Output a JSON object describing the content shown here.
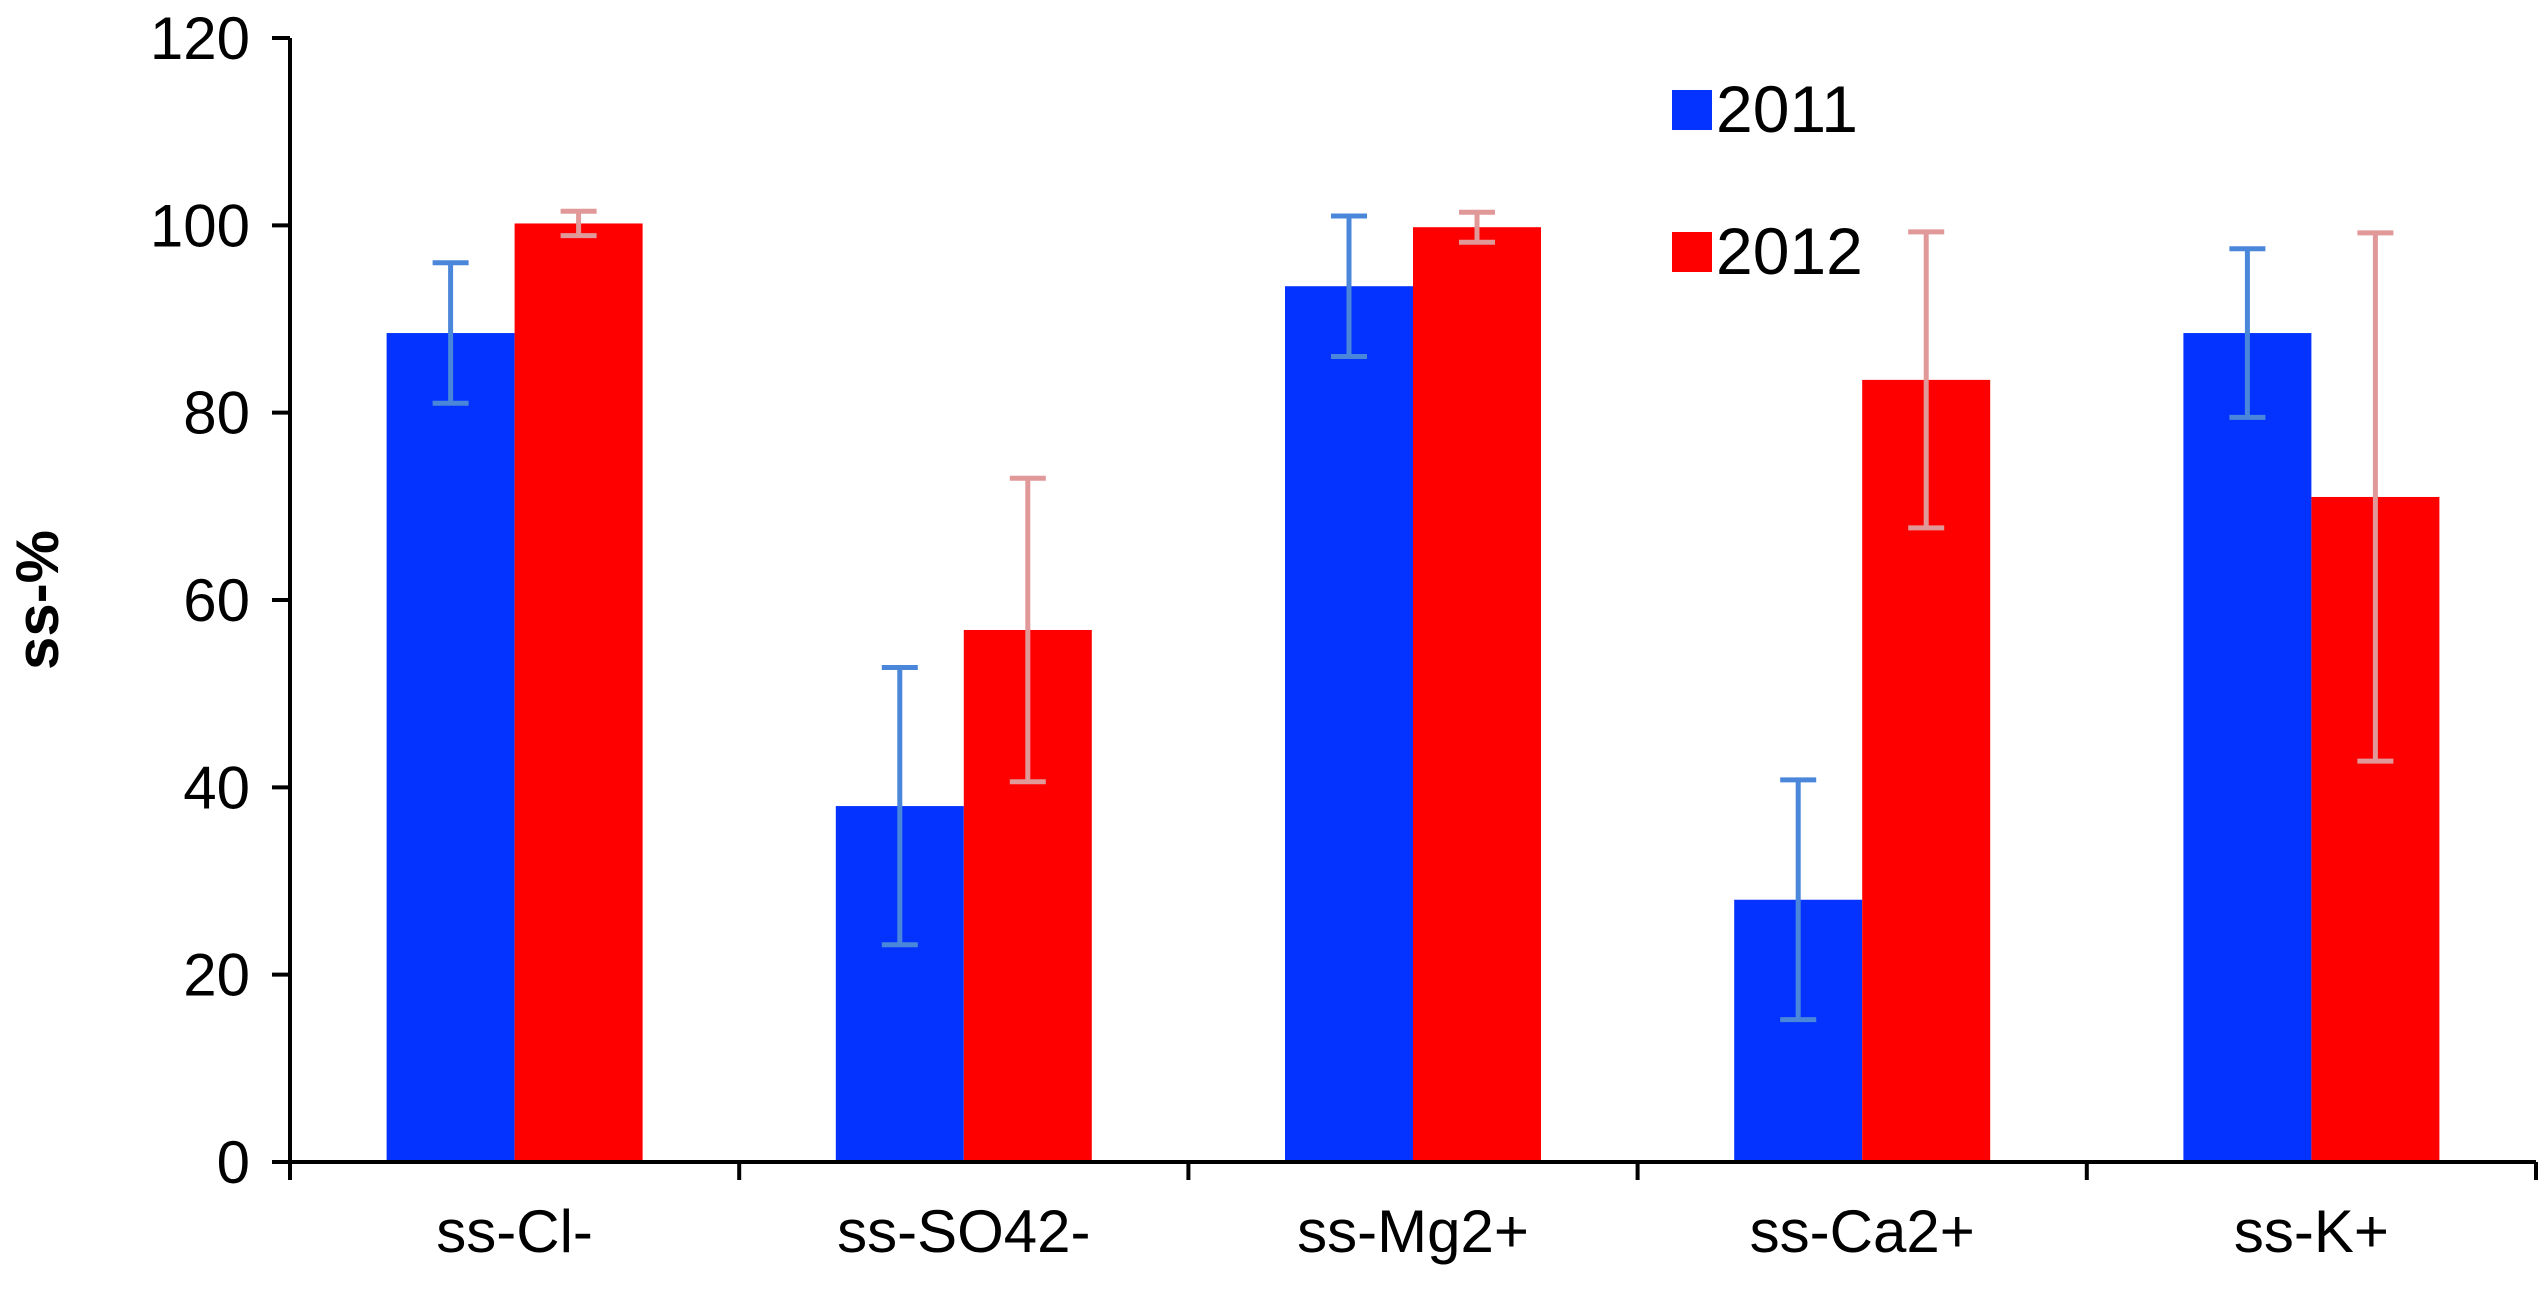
{
  "chart_data": {
    "type": "bar",
    "title": "",
    "xlabel": "",
    "ylabel": "ss-%",
    "ylim": [
      0,
      120
    ],
    "yticks": [
      0,
      20,
      40,
      60,
      80,
      100,
      120
    ],
    "grid": false,
    "legend_position": "top-right",
    "categories": [
      "ss-Cl-",
      "ss-SO42-",
      "ss-Mg2+",
      "ss-Ca2+",
      "ss-K+"
    ],
    "series": [
      {
        "name": "2011",
        "color": "#0433FF",
        "error_color": "#4A86D9",
        "values": [
          88.5,
          38,
          93.5,
          28,
          88.5
        ],
        "error": [
          7.5,
          14.8,
          7.5,
          12.8,
          9
        ]
      },
      {
        "name": "2012",
        "color": "#FF0000",
        "error_color": "#E09898",
        "values": [
          100.2,
          56.8,
          99.8,
          83.5,
          71
        ],
        "error": [
          1.3,
          16.2,
          1.6,
          15.8,
          28.2
        ]
      }
    ]
  }
}
